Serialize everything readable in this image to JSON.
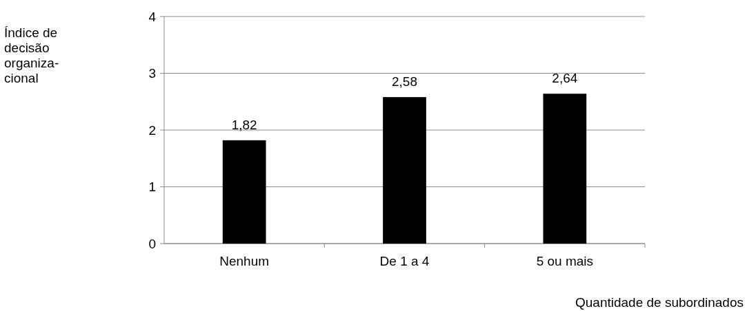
{
  "chart_data": {
    "type": "bar",
    "xlabel": "Quantidade de subordinados",
    "annotations": [
      "Índice de\ndecisão\norganiza-\ncional"
    ],
    "categories": [
      "Nenhum",
      "De 1 a 4",
      "5 ou mais"
    ],
    "values": [
      1.82,
      2.58,
      2.64
    ],
    "value_labels": [
      "1,82",
      "2,58",
      "2,64"
    ],
    "color": "#000000",
    "ylim": [
      0,
      4
    ],
    "yticks": [
      0,
      1,
      2,
      3,
      4
    ],
    "grid": "y"
  }
}
